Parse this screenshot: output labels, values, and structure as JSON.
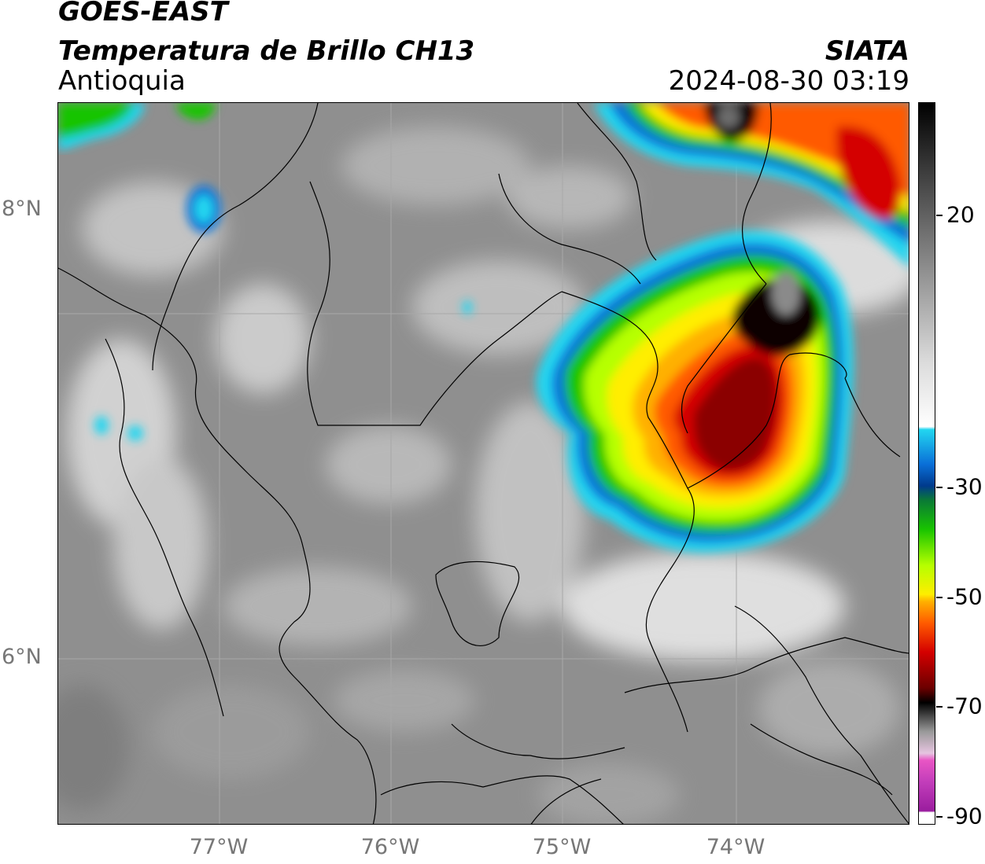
{
  "header": {
    "line1": "GOES-EAST",
    "line2": "Temperatura de Brillo CH13",
    "region": "Antioquia",
    "org": "SIATA",
    "timestamp": "2024-08-30 03:19"
  },
  "map": {
    "lat_labels": [
      "8°N",
      "6°N"
    ],
    "lon_labels": [
      "77°W",
      "76°W",
      "75°W",
      "74°W"
    ],
    "background_gray": "#8f8f8f",
    "storm_core_color": "#8b0000"
  },
  "colorbar": {
    "ticks": [
      "20",
      "-30",
      "-50",
      "-70",
      "-90"
    ],
    "stops": [
      "#ffffff",
      "#9a1d9e",
      "#e855c4",
      "#e6c4e0",
      "#999999",
      "#000000",
      "#6b0000",
      "#d40000",
      "#ff5a00",
      "#ffb000",
      "#ffee00",
      "#b6ff00",
      "#18c400",
      "#0a7a35",
      "#003a8c",
      "#0a6fd8",
      "#22d6f0",
      "#ffffff",
      "#c8c8c8",
      "#888888",
      "#404040",
      "#000000"
    ]
  }
}
